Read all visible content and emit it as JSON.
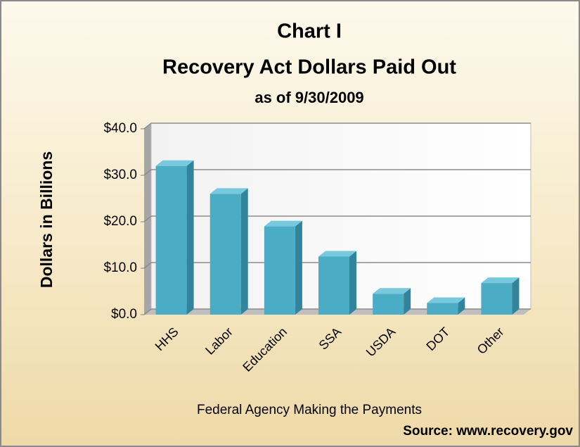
{
  "chart_data": {
    "type": "bar",
    "title": "Chart I",
    "subtitle": "Recovery Act Dollars Paid Out",
    "date_note": "as of 9/30/2009",
    "y_label": "Dollars in Billions",
    "x_label": "Federal Agency Making the Payments",
    "source": "Source:  www.recovery.gov",
    "categories": [
      "HHS",
      "Labor",
      "Education",
      "SSA",
      "USDA",
      "DOT",
      "Other"
    ],
    "values": [
      32,
      26,
      19,
      12.5,
      4.5,
      2.5,
      6.8
    ],
    "color": "#4bacc6",
    "ylim": [
      0,
      40
    ],
    "yticks": [
      {
        "value": 0,
        "label": "$0.0"
      },
      {
        "value": 10,
        "label": "$10.0"
      },
      {
        "value": 20,
        "label": "$20.0"
      },
      {
        "value": 30,
        "label": "$30.0"
      },
      {
        "value": 40,
        "label": "$40.0"
      }
    ],
    "grid": true
  }
}
